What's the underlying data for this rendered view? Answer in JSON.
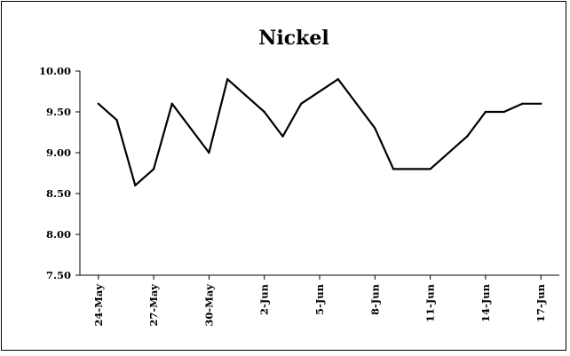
{
  "chart_data": {
    "type": "line",
    "title": "Nickel",
    "xlabel": "",
    "ylabel": "",
    "ylim": [
      7.5,
      10.0
    ],
    "yticks": [
      "10.00",
      "9.50",
      "9.00",
      "8.50",
      "8.00",
      "7.50"
    ],
    "ytick_values": [
      10.0,
      9.5,
      9.0,
      8.5,
      8.0,
      7.5
    ],
    "xlim": [
      "2024-05-23",
      "2024-06-18"
    ],
    "xticks": [
      "24-May",
      "27-May",
      "30-May",
      "2-Jun",
      "5-Jun",
      "8-Jun",
      "11-Jun",
      "14-Jun",
      "17-Jun"
    ],
    "xtick_dates": [
      "2024-05-24",
      "2024-05-27",
      "2024-05-30",
      "2024-06-02",
      "2024-06-05",
      "2024-06-08",
      "2024-06-11",
      "2024-06-14",
      "2024-06-17"
    ],
    "grid": false,
    "legend": "none",
    "line_color": "#000000",
    "series": [
      {
        "x": [
          "2024-05-24",
          "2024-05-25",
          "2024-05-26",
          "2024-05-27",
          "2024-05-28",
          "2024-05-30",
          "2024-05-31",
          "2024-06-01",
          "2024-06-02",
          "2024-06-03",
          "2024-06-04",
          "2024-06-06",
          "2024-06-08",
          "2024-06-09",
          "2024-06-11",
          "2024-06-13",
          "2024-06-14",
          "2024-06-15",
          "2024-06-16",
          "2024-06-17"
        ],
        "values": [
          9.6,
          9.4,
          8.6,
          8.8,
          9.6,
          9.0,
          9.9,
          9.7,
          9.5,
          9.2,
          9.6,
          9.9,
          9.3,
          8.8,
          8.8,
          9.2,
          9.5,
          9.5,
          9.6,
          9.6
        ]
      }
    ]
  }
}
